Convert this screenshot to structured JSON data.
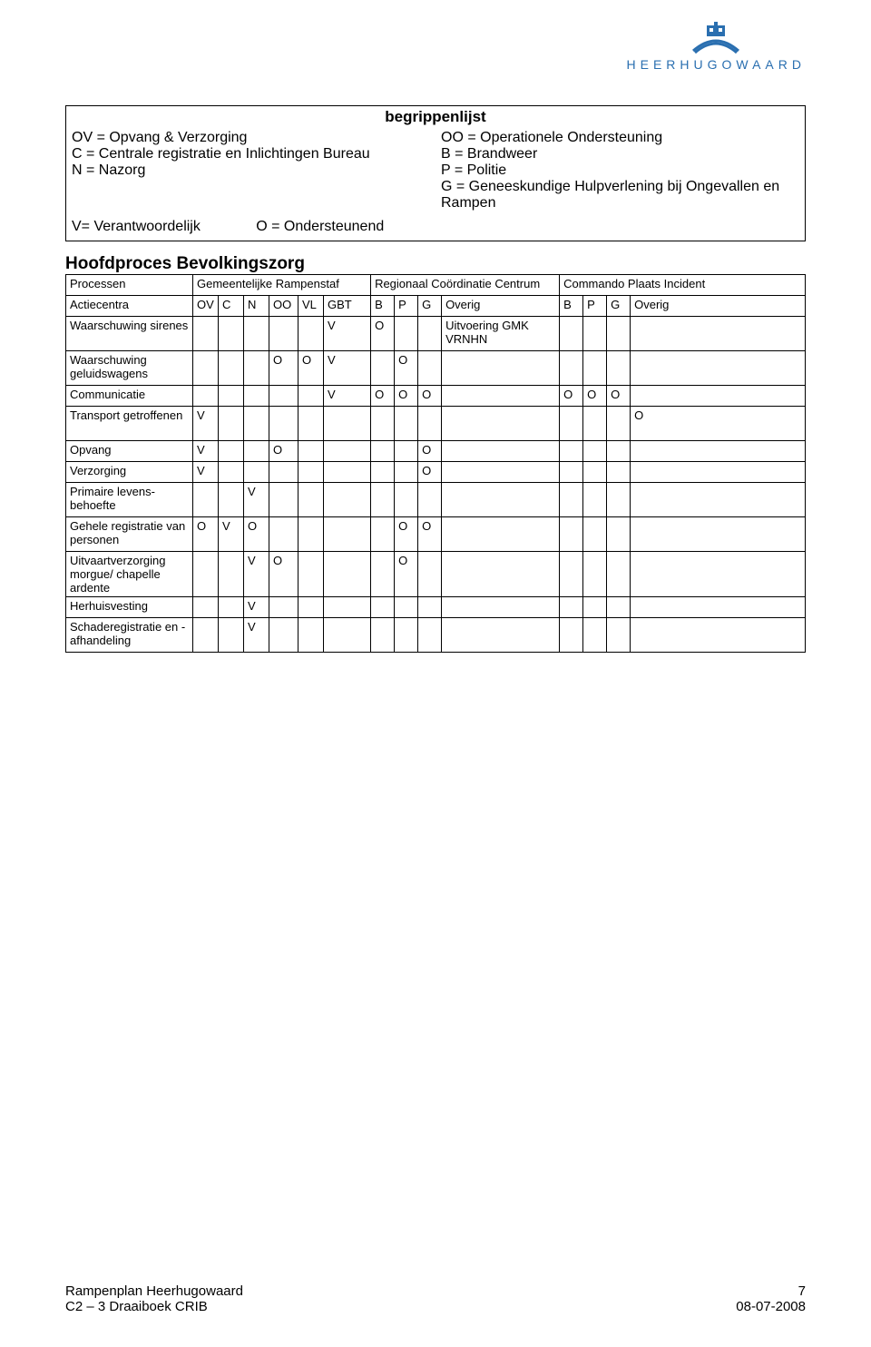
{
  "logo": {
    "name": "HEERHUGOWAARD"
  },
  "legend": {
    "title": "begrippenlijst",
    "left": [
      "OV = Opvang & Verzorging",
      "C = Centrale registratie en Inlichtingen Bureau",
      "N = Nazorg"
    ],
    "right": [
      "OO = Operationele Ondersteuning",
      "B = Brandweer",
      "P = Politie",
      "G = Geneeskundige Hulpverlening bij Ongevallen en Rampen"
    ],
    "resp_left": "V= Verantwoordelijk",
    "resp_right": "O = Ondersteunend"
  },
  "section_title": "Hoofdproces Bevolkingszorg",
  "matrix": {
    "col_proc": "Processen",
    "groups": [
      "Gemeentelijke Rampenstaf",
      "Regionaal Coördinatie Centrum",
      "Commando Plaats Incident"
    ],
    "sub": {
      "label": "Actiecentra",
      "g1": [
        "OV",
        "C",
        "N",
        "OO",
        "VL",
        "GBT"
      ],
      "g2": [
        "B",
        "P",
        "G",
        "Overig"
      ],
      "g3": [
        "B",
        "P",
        "G",
        "Overig"
      ]
    },
    "rows": [
      {
        "label": "Waarschuwing sirenes",
        "g1": [
          "",
          "",
          "",
          "",
          "",
          "V"
        ],
        "g2": [
          "O",
          "",
          "",
          "Uitvoering GMK VRNHN"
        ],
        "g3": [
          "",
          "",
          "",
          ""
        ]
      },
      {
        "label": "Waarschuwing geluidswagens",
        "g1": [
          "",
          "",
          "",
          "O",
          "O",
          "V"
        ],
        "g2": [
          "",
          "O",
          "",
          ""
        ],
        "g3": [
          "",
          "",
          "",
          ""
        ]
      },
      {
        "label": "Communicatie",
        "g1": [
          "",
          "",
          "",
          "",
          "",
          "V"
        ],
        "g2": [
          "O",
          "O",
          "O",
          ""
        ],
        "g3": [
          "O",
          "O",
          "O",
          ""
        ]
      },
      {
        "label": "Transport getroffenen",
        "g1": [
          "V",
          "",
          "",
          "",
          "",
          ""
        ],
        "g2": [
          "",
          "",
          "",
          ""
        ],
        "g3": [
          "",
          "",
          "",
          "O"
        ]
      },
      {
        "label": "Opvang",
        "g1": [
          "V",
          "",
          "",
          "O",
          "",
          ""
        ],
        "g2": [
          "",
          "",
          "O",
          ""
        ],
        "g3": [
          "",
          "",
          "",
          ""
        ]
      },
      {
        "label": "Verzorging",
        "g1": [
          "V",
          "",
          "",
          "",
          "",
          ""
        ],
        "g2": [
          "",
          "",
          "O",
          ""
        ],
        "g3": [
          "",
          "",
          "",
          ""
        ]
      },
      {
        "label": "Primaire levens-behoefte",
        "g1": [
          "",
          "",
          "V",
          "",
          "",
          ""
        ],
        "g2": [
          "",
          "",
          "",
          ""
        ],
        "g3": [
          "",
          "",
          "",
          ""
        ]
      },
      {
        "label": "Gehele registratie van personen",
        "g1": [
          "O",
          "V",
          "O",
          "",
          "",
          ""
        ],
        "g2": [
          "",
          "O",
          "O",
          ""
        ],
        "g3": [
          "",
          "",
          "",
          ""
        ]
      },
      {
        "label": "Uitvaartverzorging morgue/ chapelle ardente",
        "g1": [
          "",
          "",
          "V",
          "O",
          "",
          ""
        ],
        "g2": [
          "",
          "O",
          "",
          ""
        ],
        "g3": [
          "",
          "",
          "",
          ""
        ]
      },
      {
        "label": "Herhuisvesting",
        "g1": [
          "",
          "",
          "V",
          "",
          "",
          ""
        ],
        "g2": [
          "",
          "",
          "",
          ""
        ],
        "g3": [
          "",
          "",
          "",
          ""
        ]
      },
      {
        "label": "Schaderegistratie en -afhandeling",
        "g1": [
          "",
          "",
          "V",
          "",
          "",
          ""
        ],
        "g2": [
          "",
          "",
          "",
          ""
        ],
        "g3": [
          "",
          "",
          "",
          ""
        ]
      }
    ]
  },
  "footer": {
    "left1": "Rampenplan Heerhugowaard",
    "left2": "C2 – 3 Draaiboek CRIB",
    "right1": "7",
    "right2": "08-07-2008"
  }
}
